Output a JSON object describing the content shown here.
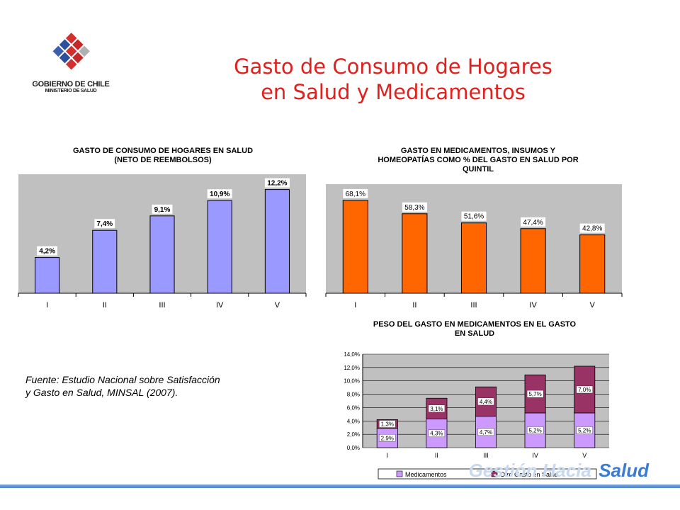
{
  "header": {
    "title_line1": "Gasto de Consumo de Hogares",
    "title_line2": "en Salud y Medicamentos"
  },
  "logo": {
    "line1": "GOBIERNO DE CHILE",
    "line2": "MINISTERIO DE SALUD"
  },
  "source": {
    "line1": "Fuente: Estudio Nacional sobre Satisfacción",
    "line2": "y Gasto en Salud, MINSAL (2007)."
  },
  "brand": {
    "ghost_text": "Gestión Hacia",
    "text": "Salud"
  },
  "colors": {
    "title_red": "#e0201c",
    "bar_blue": "#9999ff",
    "bar_orange": "#ff6600",
    "medicamentos": "#cc99ff",
    "otro_gasto": "#993366",
    "plot_bg": "#c0c0c0"
  },
  "chart_data": [
    {
      "type": "bar",
      "title_line1": "GASTO DE CONSUMO DE HOGARES EN SALUD",
      "title_line2": "(NETO DE REEMBOLSOS)",
      "categories": [
        "I",
        "II",
        "III",
        "IV",
        "V"
      ],
      "values": [
        4.2,
        7.4,
        9.1,
        10.9,
        12.2
      ],
      "labels": [
        "4,2%",
        "7,4%",
        "9,1%",
        "10,9%",
        "12,2%"
      ],
      "ylim": [
        0,
        14
      ],
      "grid": false,
      "color": "#9999ff"
    },
    {
      "type": "bar",
      "title_line1": "GASTO EN MEDICAMENTOS, INSUMOS Y",
      "title_line2": "HOMEOPATÍAS COMO % DEL GASTO EN SALUD POR",
      "title_line3": "QUINTIL",
      "categories": [
        "I",
        "II",
        "III",
        "IV",
        "V"
      ],
      "values": [
        68.1,
        58.3,
        51.6,
        47.4,
        42.8
      ],
      "labels": [
        "68,1%",
        "58,3%",
        "51,6%",
        "47,4%",
        "42,8%"
      ],
      "ylim": [
        0,
        80
      ],
      "grid": false,
      "color": "#ff6600"
    },
    {
      "type": "bar",
      "stacked": true,
      "title_line1": "PESO DEL GASTO EN MEDICAMENTOS EN EL GASTO",
      "title_line2": "EN SALUD",
      "categories": [
        "I",
        "II",
        "III",
        "IV",
        "V"
      ],
      "yticks": [
        "0,0%",
        "2,0%",
        "4,0%",
        "6,0%",
        "8,0%",
        "10,0%",
        "12,0%",
        "14,0%"
      ],
      "ylim": [
        0,
        14
      ],
      "legend_position": "bottom",
      "series": [
        {
          "name": "Medicamentos",
          "values": [
            2.9,
            4.3,
            4.7,
            5.2,
            5.2
          ],
          "labels": [
            "2,9%",
            "4,3%",
            "4,7%",
            "5,2%",
            "5,2%"
          ],
          "color": "#cc99ff"
        },
        {
          "name": "Otro Gasto en Salud",
          "values": [
            1.3,
            3.1,
            4.4,
            5.7,
            7.0
          ],
          "labels": [
            "1,3%",
            "3,1%",
            "4,4%",
            "5,7%",
            "7,0%"
          ],
          "color": "#993366"
        }
      ]
    }
  ]
}
